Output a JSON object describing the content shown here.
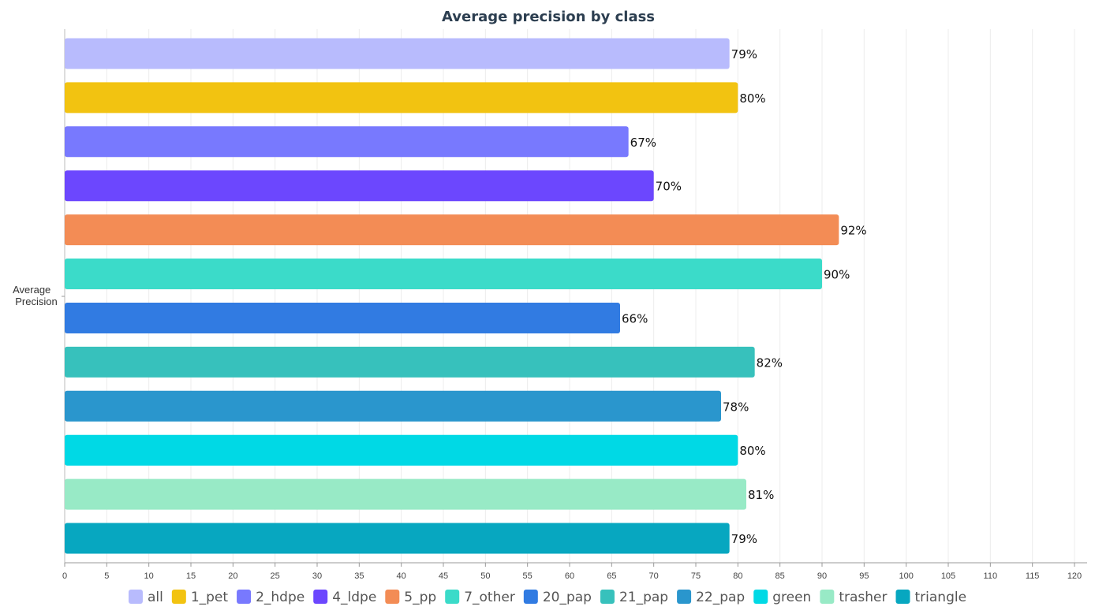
{
  "chart_data": {
    "type": "bar",
    "orientation": "horizontal",
    "title": "Average precision by class",
    "ylabel": "Average Precision",
    "xlabel": "",
    "xlim": [
      0,
      120
    ],
    "x_ticks": [
      0,
      5,
      10,
      15,
      20,
      25,
      30,
      35,
      40,
      45,
      50,
      55,
      60,
      65,
      70,
      75,
      80,
      85,
      90,
      95,
      100,
      105,
      110,
      115,
      120
    ],
    "grid": "vertical",
    "legend_position": "bottom",
    "value_suffix": "%",
    "series": [
      {
        "name": "all",
        "value": 79,
        "label": "79%",
        "color": "#b8bbfd"
      },
      {
        "name": "1_pet",
        "value": 80,
        "label": "80%",
        "color": "#f2c311"
      },
      {
        "name": "2_hdpe",
        "value": 67,
        "label": "67%",
        "color": "#7879fe"
      },
      {
        "name": "4_ldpe",
        "value": 70,
        "label": "70%",
        "color": "#6c47fe"
      },
      {
        "name": "5_pp",
        "value": 92,
        "label": "92%",
        "color": "#f38c55"
      },
      {
        "name": "7_other",
        "value": 90,
        "label": "90%",
        "color": "#3bdbc9"
      },
      {
        "name": "20_pap",
        "value": 66,
        "label": "66%",
        "color": "#317be2"
      },
      {
        "name": "21_pap",
        "value": 82,
        "label": "82%",
        "color": "#37c1bc"
      },
      {
        "name": "22_pap",
        "value": 78,
        "label": "78%",
        "color": "#2a96cd"
      },
      {
        "name": "green",
        "value": 80,
        "label": "80%",
        "color": "#00d9e5"
      },
      {
        "name": "trasher",
        "value": 81,
        "label": "81%",
        "color": "#98eac6"
      },
      {
        "name": "triangle",
        "value": 79,
        "label": "79%",
        "color": "#07a7c0"
      }
    ]
  }
}
